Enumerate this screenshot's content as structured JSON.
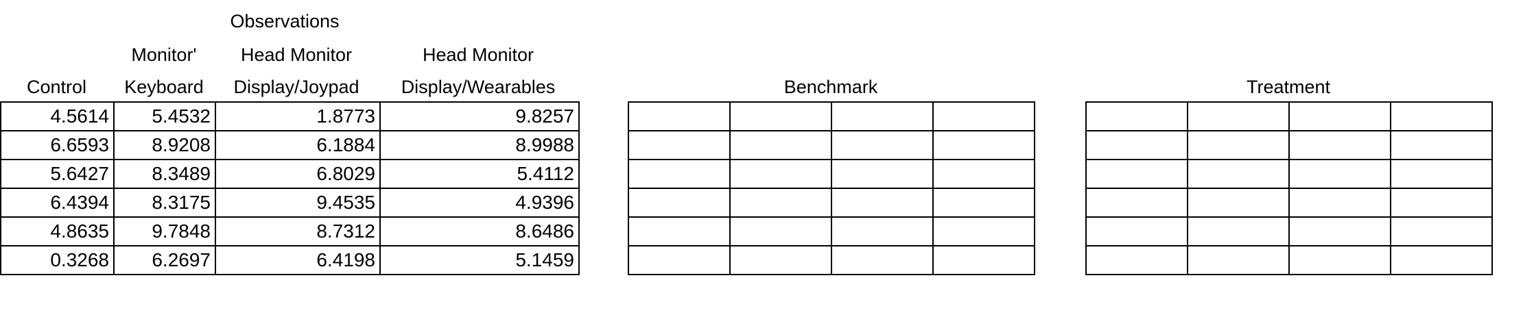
{
  "observations": {
    "super_header": "Observations",
    "columns": [
      {
        "line1": "",
        "line2": "Control"
      },
      {
        "line1": "Monitor'",
        "line2": "Keyboard"
      },
      {
        "line1": "Head Monitor",
        "line2": "Display/Joypad"
      },
      {
        "line1": "Head Monitor",
        "line2": "Display/Wearables"
      }
    ],
    "rows": [
      [
        "4.5614",
        "5.4532",
        "1.8773",
        "9.8257"
      ],
      [
        "6.6593",
        "8.9208",
        "6.1884",
        "8.9988"
      ],
      [
        "5.6427",
        "8.3489",
        "6.8029",
        "5.4112"
      ],
      [
        "6.4394",
        "8.3175",
        "9.4535",
        "4.9396"
      ],
      [
        "4.8635",
        "9.7848",
        "8.7312",
        "8.6486"
      ],
      [
        "0.3268",
        "6.2697",
        "6.4198",
        "5.1459"
      ]
    ]
  },
  "benchmark": {
    "title": "Benchmark"
  },
  "treatment": {
    "title": "Treatment"
  }
}
